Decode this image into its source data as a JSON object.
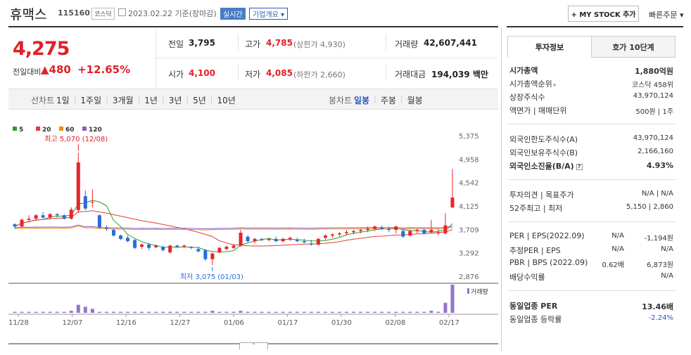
{
  "header": {
    "name": "휴맥스",
    "code": "115160",
    "market": "코스닥",
    "datetime": "2023.02.22 기준(장마감)",
    "live": "실시간",
    "company_info": "기업개요",
    "my_stock": "+ MY STOCK 추가",
    "quick_order": "빠른주문"
  },
  "quote": {
    "price": "4,275",
    "change_label": "전일대비",
    "change": "▲480",
    "change_pct": "+12.65%",
    "prev_label": "전일",
    "prev": "3,795",
    "high_label": "고가",
    "high": "4,785",
    "upper_limit": "(상한가 4,930)",
    "volume_label": "거래량",
    "volume": "42,607,441",
    "open_label": "시가",
    "open": "4,100",
    "low_label": "저가",
    "low": "4,085",
    "lower_limit": "(하한가 2,660)",
    "amount_label": "거래대금",
    "amount": "194,039 백만"
  },
  "period": {
    "line_label": "선차트",
    "line_items": [
      "1일",
      "1주일",
      "3개월",
      "1년",
      "3년",
      "5년",
      "10년"
    ],
    "candle_label": "봉차트",
    "candle_items": [
      "일봉",
      "주봉",
      "월봉"
    ],
    "active_candle": "일봉"
  },
  "chart_data": {
    "type": "candlestick",
    "legend": [
      "5",
      "20",
      "60",
      "120"
    ],
    "legend_colors": [
      "#2e9e2e",
      "#e03c3c",
      "#f08a1c",
      "#8a5cc0"
    ],
    "y_ticks": [
      "5,375",
      "4,958",
      "4,542",
      "4,125",
      "3,709",
      "3,292",
      "2,876"
    ],
    "ylim": [
      2876,
      5375
    ],
    "x_ticks": [
      "11/28",
      "12/07",
      "12/16",
      "12/27",
      "01/06",
      "01/17",
      "01/30",
      "02/08",
      "02/17"
    ],
    "max_note": "최고 5,070 (12/08)",
    "min_note": "최저 3,075 (01/03)",
    "volume_label": "거래량",
    "candles": [
      [
        3800,
        3820,
        3720,
        3760
      ],
      [
        3760,
        3900,
        3740,
        3880
      ],
      [
        3880,
        3960,
        3840,
        3900
      ],
      [
        3900,
        3980,
        3860,
        3960
      ],
      [
        3960,
        4020,
        3900,
        3920
      ],
      [
        3920,
        4000,
        3880,
        3980
      ],
      [
        3980,
        4000,
        3920,
        3960
      ],
      [
        3960,
        3980,
        3880,
        3900
      ],
      [
        3900,
        4100,
        3880,
        4060
      ],
      [
        4050,
        5070,
        4000,
        4900
      ],
      [
        4300,
        4400,
        4050,
        4080
      ],
      [
        4200,
        4420,
        4100,
        4200
      ],
      [
        3960,
        3980,
        3720,
        3740
      ],
      [
        3740,
        3780,
        3680,
        3720
      ],
      [
        3700,
        3720,
        3580,
        3600
      ],
      [
        3600,
        3620,
        3520,
        3540
      ],
      [
        3560,
        3600,
        3480,
        3500
      ],
      [
        3520,
        3540,
        3360,
        3380
      ],
      [
        3400,
        3460,
        3360,
        3440
      ],
      [
        3440,
        3470,
        3340,
        3380
      ],
      [
        3390,
        3440,
        3380,
        3420
      ],
      [
        3400,
        3420,
        3320,
        3340
      ],
      [
        3300,
        3440,
        3280,
        3420
      ],
      [
        3420,
        3440,
        3380,
        3400
      ],
      [
        3400,
        3440,
        3380,
        3420
      ],
      [
        3400,
        3410,
        3360,
        3380
      ],
      [
        3360,
        3400,
        3300,
        3320
      ],
      [
        3340,
        3360,
        3150,
        3180
      ],
      [
        3180,
        3300,
        3075,
        3280
      ],
      [
        3300,
        3400,
        3280,
        3380
      ],
      [
        3360,
        3420,
        3340,
        3400
      ],
      [
        3380,
        3450,
        3360,
        3420
      ],
      [
        3420,
        3700,
        3400,
        3650
      ],
      [
        3580,
        3600,
        3480,
        3500
      ],
      [
        3500,
        3560,
        3460,
        3540
      ],
      [
        3540,
        3560,
        3500,
        3520
      ],
      [
        3520,
        3560,
        3500,
        3540
      ],
      [
        3540,
        3580,
        3480,
        3500
      ],
      [
        3500,
        3560,
        3480,
        3540
      ],
      [
        3540,
        3580,
        3500,
        3560
      ],
      [
        3520,
        3560,
        3480,
        3500
      ],
      [
        3500,
        3540,
        3460,
        3480
      ],
      [
        3460,
        3520,
        3420,
        3440
      ],
      [
        3440,
        3560,
        3420,
        3540
      ],
      [
        3560,
        3620,
        3520,
        3600
      ],
      [
        3600,
        3640,
        3560,
        3620
      ],
      [
        3620,
        3660,
        3580,
        3640
      ],
      [
        3640,
        3700,
        3600,
        3660
      ],
      [
        3660,
        3700,
        3620,
        3680
      ],
      [
        3680,
        3720,
        3640,
        3700
      ],
      [
        3700,
        3760,
        3660,
        3720
      ],
      [
        3720,
        3780,
        3680,
        3760
      ],
      [
        3740,
        3780,
        3700,
        3720
      ],
      [
        3720,
        3760,
        3660,
        3700
      ],
      [
        3700,
        3780,
        3640,
        3760
      ],
      [
        3680,
        3720,
        3560,
        3580
      ],
      [
        3600,
        3700,
        3580,
        3680
      ],
      [
        3680,
        3720,
        3640,
        3700
      ],
      [
        3700,
        3720,
        3620,
        3640
      ],
      [
        3660,
        3880,
        3640,
        3700
      ],
      [
        3640,
        3720,
        3600,
        3660
      ],
      [
        3640,
        4000,
        3620,
        3780
      ],
      [
        4100,
        4785,
        4085,
        4275
      ]
    ],
    "volumes": [
      1,
      1,
      1,
      1,
      1,
      1,
      1,
      1,
      2,
      8,
      6,
      4,
      1,
      1,
      1,
      1,
      1,
      1,
      1,
      1,
      1,
      1,
      1,
      1,
      1,
      1,
      1,
      1,
      2,
      1,
      1,
      1,
      2,
      1,
      1,
      1,
      1,
      1,
      1,
      1,
      1,
      1,
      1,
      1,
      1,
      1,
      1,
      1,
      1,
      1,
      1,
      1,
      1,
      1,
      1,
      1,
      1,
      1,
      1,
      2,
      1,
      10,
      28
    ]
  },
  "right_panel": {
    "tabs": [
      "투자정보",
      "호가 10단계"
    ],
    "g1": [
      {
        "label": "시가총액",
        "value": "1,880억원",
        "bold": true
      },
      {
        "label": "시가총액순위",
        "value": "코스닥 458위",
        "arrow": true
      },
      {
        "label": "상장주식수",
        "value": "43,970,124"
      },
      {
        "label": "액면가 | 매매단위",
        "value": "500원 | 1주"
      }
    ],
    "g2": [
      {
        "label": "외국인한도주식수(A)",
        "value": "43,970,124"
      },
      {
        "label": "외국인보유주식수(B)",
        "value": "2,166,160"
      },
      {
        "label": "외국인소진율(B/A)",
        "value": "4.93%",
        "bold": true,
        "q": true
      }
    ],
    "g3": [
      {
        "label": "투자의견 | 목표주가",
        "value": "N/A | N/A"
      },
      {
        "label": "52주최고 | 최저",
        "value": "5,150 | 2,860"
      }
    ],
    "g4": [
      {
        "label": "PER | EPS(2022.09)",
        "value1": "N/A",
        "value": "-1,194원"
      },
      {
        "label": "추정PER | EPS",
        "value1": "N/A",
        "value": "N/A"
      },
      {
        "label": "PBR | BPS (2022.09)",
        "value1": "0.62배",
        "value": "6,873원"
      },
      {
        "label": "배당수익률",
        "value": "N/A"
      }
    ],
    "g5": [
      {
        "label": "동일업종 PER",
        "value": "13.46배",
        "bold": true
      },
      {
        "label": "동일업종 등락률",
        "value": "-2.24%",
        "blue": true
      }
    ]
  }
}
